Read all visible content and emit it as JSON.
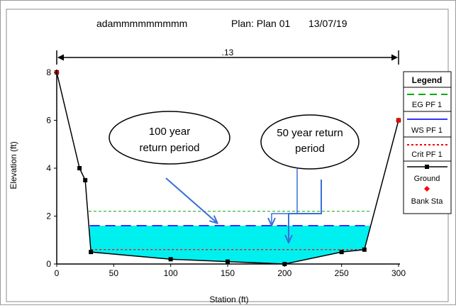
{
  "header": {
    "project": "adammmmmmmmm",
    "plan": "Plan: Plan 01",
    "date": "13/07/19"
  },
  "chart_data": {
    "type": "line",
    "title": "adammmmmmmmm    Plan: Plan 01    13/07/19",
    "xlabel": "Station (ft)",
    "ylabel": "Elevation (ft)",
    "xlim": [
      0,
      300
    ],
    "ylim": [
      0,
      8
    ],
    "x_ticks": [
      "0",
      "50",
      "100",
      "150",
      "200",
      "250",
      "300"
    ],
    "y_ticks": [
      "0",
      "2",
      "4",
      "6",
      "8"
    ],
    "x_tick_values": [
      0,
      50,
      100,
      150,
      200,
      250,
      300
    ],
    "y_tick_values": [
      0,
      2,
      4,
      6,
      8
    ],
    "manning_label": ".13",
    "manning_span": [
      0,
      300
    ],
    "ground": {
      "name": "Ground",
      "x": [
        0,
        20,
        25,
        30,
        100,
        150,
        200,
        250,
        270,
        300
      ],
      "y": [
        8,
        4,
        3.5,
        0.5,
        0.2,
        0.1,
        0,
        0.5,
        0.6,
        6
      ],
      "color": "#000000"
    },
    "bank_stations": {
      "name": "Bank Sta",
      "x": [
        0,
        300
      ],
      "y": [
        8,
        6
      ],
      "color": "#ff0000"
    },
    "eg_pf1": {
      "name": "EG PF 1",
      "y": 2.2,
      "x_range": [
        28,
        275
      ],
      "color": "#00aa00"
    },
    "ws_pf1": {
      "name": "WS PF 1",
      "y": 1.6,
      "x_range": [
        29,
        275
      ],
      "color": "#3333ff",
      "fill": "#00f0f0"
    },
    "crit_pf1": {
      "name": "Crit PF 1",
      "y": 0.6,
      "x_range": [
        30,
        272
      ],
      "color": "#ff0000"
    },
    "legend_title": "Legend",
    "legend_placement": "right"
  },
  "annotations": [
    {
      "line1": "100 year",
      "line2": "return period"
    },
    {
      "line1": "50 year return",
      "line2": "period"
    }
  ]
}
